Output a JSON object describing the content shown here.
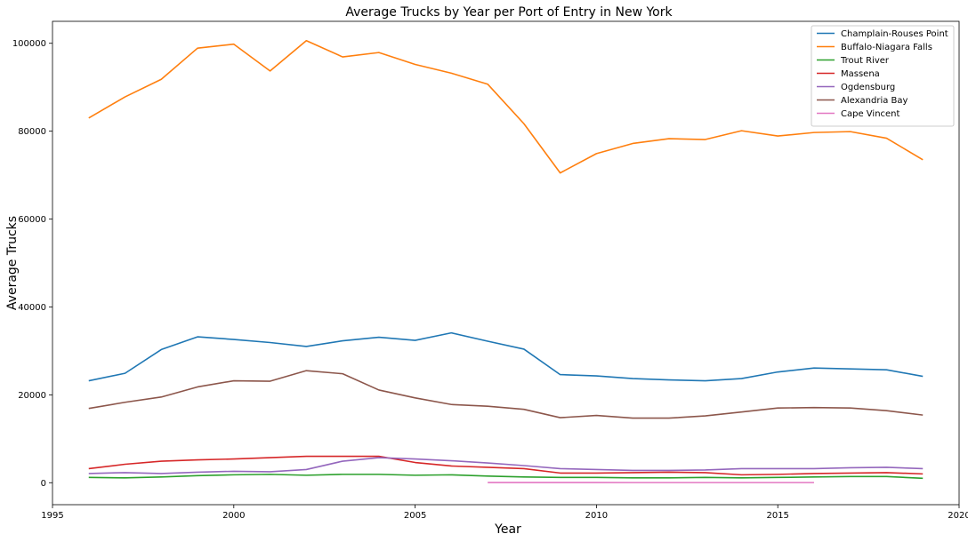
{
  "chart_data": {
    "type": "line",
    "title": "Average Trucks by Year per Port of Entry in New York",
    "xlabel": "Year",
    "ylabel": "Average Trucks",
    "xlim": [
      1995,
      2020
    ],
    "ylim": [
      -5000,
      105000
    ],
    "x_ticks": [
      1995,
      2000,
      2005,
      2010,
      2015,
      2020
    ],
    "y_ticks": [
      0,
      20000,
      40000,
      60000,
      80000,
      100000
    ],
    "grid": false,
    "legend_position": "top-right",
    "series": [
      {
        "name": "Champlain-Rouses Point",
        "color": "#1f77b4",
        "x": [
          1996,
          1997,
          1998,
          1999,
          2000,
          2001,
          2002,
          2003,
          2004,
          2005,
          2006,
          2007,
          2008,
          2009,
          2010,
          2011,
          2012,
          2013,
          2014,
          2015,
          2016,
          2017,
          2018,
          2019
        ],
        "values": [
          23200,
          24900,
          30300,
          33200,
          32600,
          31900,
          31000,
          32300,
          33100,
          32400,
          34100,
          32200,
          30400,
          24600,
          24300,
          23700,
          23400,
          23200,
          23700,
          25200,
          26100,
          25900,
          25700,
          24200
        ]
      },
      {
        "name": "Buffalo-Niagara Falls",
        "color": "#ff7f0e",
        "x": [
          1996,
          1997,
          1998,
          1999,
          2000,
          2001,
          2002,
          2003,
          2004,
          2005,
          2006,
          2007,
          2008,
          2009,
          2010,
          2011,
          2012,
          2013,
          2014,
          2015,
          2016,
          2017,
          2018,
          2019
        ],
        "values": [
          83000,
          87800,
          91800,
          98900,
          99800,
          93700,
          100600,
          96900,
          97900,
          95200,
          93200,
          90700,
          81700,
          70500,
          74900,
          77200,
          78300,
          78100,
          80100,
          78900,
          79700,
          79900,
          78400,
          73500
        ]
      },
      {
        "name": "Trout River",
        "color": "#2ca02c",
        "x": [
          1996,
          1997,
          1998,
          1999,
          2000,
          2001,
          2002,
          2003,
          2004,
          2005,
          2006,
          2007,
          2008,
          2009,
          2010,
          2011,
          2012,
          2013,
          2014,
          2015,
          2016,
          2017,
          2018,
          2019
        ],
        "values": [
          1200,
          1100,
          1300,
          1600,
          1800,
          1900,
          1700,
          1900,
          1900,
          1700,
          1800,
          1500,
          1300,
          1200,
          1200,
          1100,
          1100,
          1200,
          1100,
          1200,
          1300,
          1400,
          1400,
          1000
        ]
      },
      {
        "name": "Massena",
        "color": "#d62728",
        "x": [
          1996,
          1997,
          1998,
          1999,
          2000,
          2001,
          2002,
          2003,
          2004,
          2005,
          2006,
          2007,
          2008,
          2009,
          2010,
          2011,
          2012,
          2013,
          2014,
          2015,
          2016,
          2017,
          2018,
          2019
        ],
        "values": [
          3200,
          4200,
          4900,
          5200,
          5400,
          5700,
          6000,
          6000,
          6000,
          4600,
          3800,
          3500,
          3200,
          2200,
          2200,
          2300,
          2400,
          2300,
          1800,
          1900,
          2100,
          2200,
          2300,
          2000
        ]
      },
      {
        "name": "Ogdensburg",
        "color": "#9467bd",
        "x": [
          1996,
          1997,
          1998,
          1999,
          2000,
          2001,
          2002,
          2003,
          2004,
          2005,
          2006,
          2007,
          2008,
          2009,
          2010,
          2011,
          2012,
          2013,
          2014,
          2015,
          2016,
          2017,
          2018,
          2019
        ],
        "values": [
          2100,
          2300,
          2100,
          2400,
          2600,
          2500,
          3000,
          4900,
          5700,
          5400,
          5000,
          4500,
          3900,
          3200,
          3000,
          2800,
          2800,
          2900,
          3200,
          3200,
          3200,
          3400,
          3500,
          3200
        ]
      },
      {
        "name": "Alexandria Bay",
        "color": "#8c564b",
        "x": [
          1996,
          1997,
          1998,
          1999,
          2000,
          2001,
          2002,
          2003,
          2004,
          2005,
          2006,
          2007,
          2008,
          2009,
          2010,
          2011,
          2012,
          2013,
          2014,
          2015,
          2016,
          2017,
          2018,
          2019
        ],
        "values": [
          16900,
          18300,
          19500,
          21800,
          23200,
          23100,
          25500,
          24800,
          21100,
          19300,
          17800,
          17400,
          16700,
          14800,
          15300,
          14700,
          14700,
          15200,
          16100,
          17000,
          17100,
          17000,
          16400,
          15400
        ]
      },
      {
        "name": "Cape Vincent",
        "color": "#e377c2",
        "x": [
          2007,
          2008,
          2009,
          2010,
          2011,
          2012,
          2013,
          2014,
          2015,
          2016
        ],
        "values": [
          50,
          50,
          40,
          40,
          30,
          30,
          30,
          30,
          30,
          30
        ]
      }
    ]
  }
}
